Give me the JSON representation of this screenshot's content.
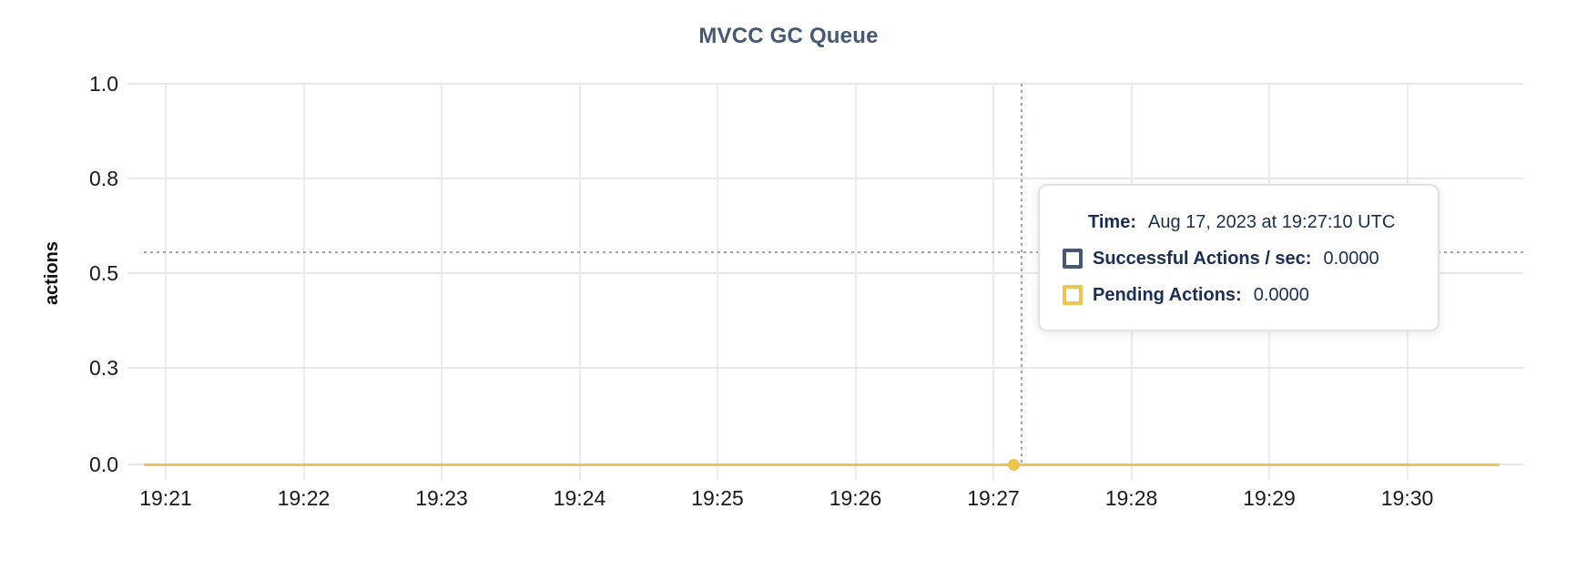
{
  "title": "MVCC GC Queue",
  "colors": {
    "title": "#475872",
    "successful": "#475872",
    "pending": "#EFC34F",
    "tooltip_text": "#1B2E52",
    "gridline": "#E9E9E9",
    "crosshair": "#9AA6B4"
  },
  "y_axis": {
    "label": "actions",
    "ticks": [
      "1.0",
      "0.8",
      "0.5",
      "0.3",
      "0.0"
    ]
  },
  "x_axis": {
    "ticks": [
      "19:21",
      "19:22",
      "19:23",
      "19:24",
      "19:25",
      "19:26",
      "19:27",
      "19:28",
      "19:29",
      "19:30"
    ]
  },
  "tooltip": {
    "time_label": "Time:",
    "time_value": "Aug 17, 2023 at 19:27:10 UTC",
    "series": [
      {
        "label": "Successful Actions / sec:",
        "value": "0.0000",
        "color": "#475872"
      },
      {
        "label": "Pending Actions:",
        "value": "0.0000",
        "color": "#EFC34F"
      }
    ]
  },
  "chart_data": {
    "type": "line",
    "title": "MVCC GC Queue",
    "xlabel": "",
    "ylabel": "actions",
    "x_ticks": [
      "19:21",
      "19:22",
      "19:23",
      "19:24",
      "19:25",
      "19:26",
      "19:27",
      "19:28",
      "19:29",
      "19:30"
    ],
    "x_range": [
      "19:20:50",
      "19:30:40"
    ],
    "y_ticks": [
      0.0,
      0.3,
      0.5,
      0.8,
      1.0
    ],
    "y_tick_labels": [
      "0.0",
      "0.3",
      "0.5",
      "0.8",
      "1.0"
    ],
    "ylim": [
      0.0,
      1.0
    ],
    "grid": true,
    "legend_position": "tooltip-only",
    "series": [
      {
        "name": "Successful Actions / sec",
        "color": "#475872",
        "constant_value": 0.0
      },
      {
        "name": "Pending Actions",
        "color": "#EFC34F",
        "constant_value": 0.0
      }
    ],
    "hover_point": {
      "time": "19:27:10",
      "time_full": "Aug 17, 2023 at 19:27:10 UTC",
      "values": [
        0.0,
        0.0
      ]
    }
  }
}
